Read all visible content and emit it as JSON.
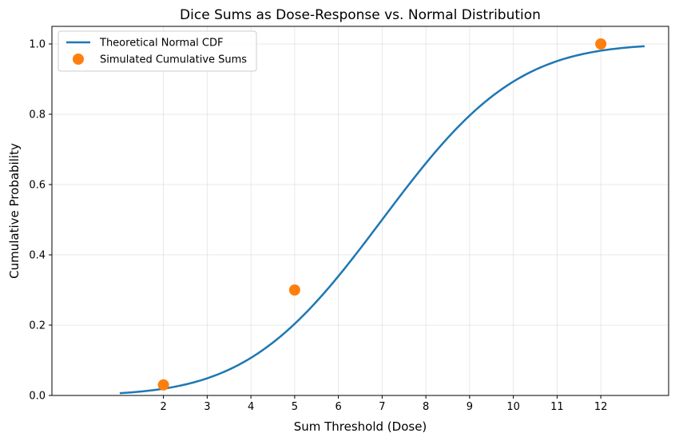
{
  "chart_data": {
    "type": "line",
    "title": "Dice Sums as Dose-Response vs. Normal Distribution",
    "xlabel": "Sum Threshold (Dose)",
    "ylabel": "Cumulative Probability",
    "xlim": [
      -0.55,
      13.55
    ],
    "ylim": [
      0.0,
      1.05
    ],
    "x_ticks": [
      2,
      3,
      4,
      5,
      6,
      7,
      8,
      9,
      10,
      11,
      12
    ],
    "y_ticks": [
      0.0,
      0.2,
      0.4,
      0.6,
      0.8,
      1.0
    ],
    "y_tick_labels": [
      "0.0",
      "0.2",
      "0.4",
      "0.6",
      "0.8",
      "1.0"
    ],
    "grid": true,
    "legend_position": "top-left",
    "series": [
      {
        "name": "Theoretical Normal CDF",
        "kind": "line",
        "color": "#1f77b4",
        "distribution": {
          "mean": 7,
          "std": 2.415
        },
        "x_range": [
          1,
          13
        ]
      },
      {
        "name": "Simulated Cumulative Sums",
        "kind": "scatter",
        "color": "#ff7f0e",
        "x": [
          2,
          5,
          12
        ],
        "y": [
          0.03,
          0.3,
          1.0
        ]
      }
    ]
  }
}
